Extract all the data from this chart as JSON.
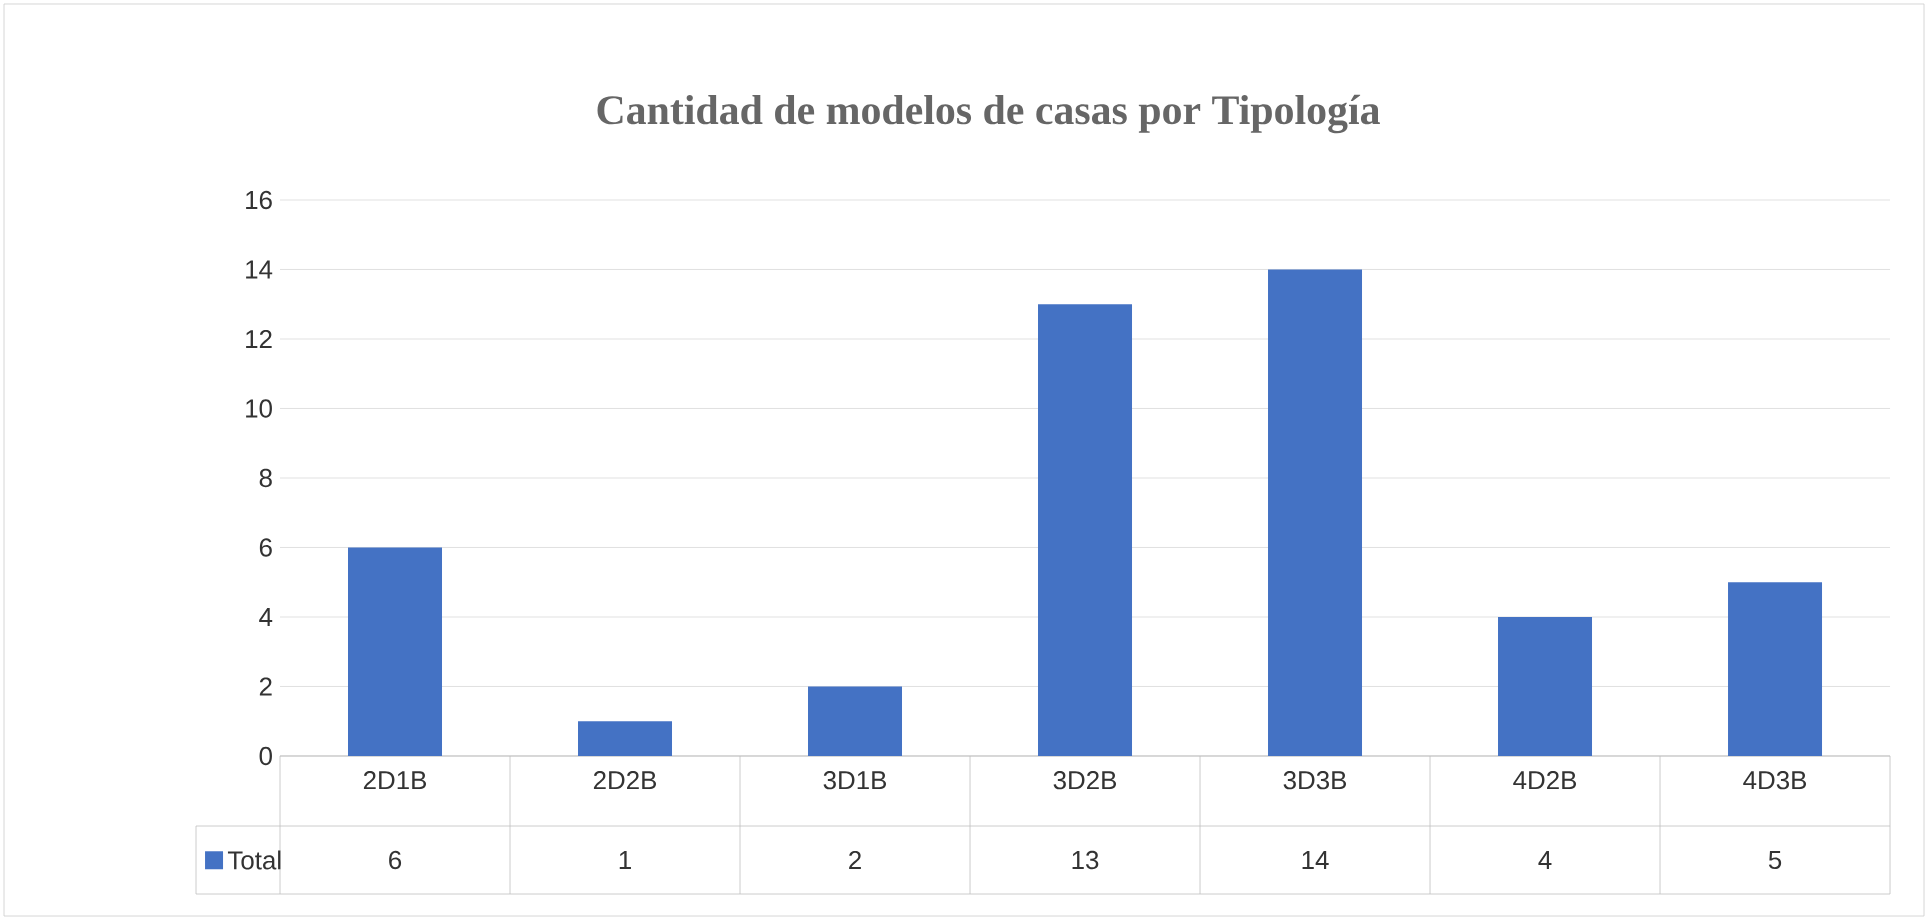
{
  "chart_data": {
    "type": "bar",
    "title": "Cantidad de modelos de casas por Tipología",
    "categories": [
      "2D1B",
      "2D2B",
      "3D1B",
      "3D2B",
      "3D3B",
      "4D2B",
      "4D3B"
    ],
    "series": [
      {
        "name": "Total",
        "color": "#4472c4",
        "values": [
          6,
          1,
          2,
          13,
          14,
          4,
          5
        ]
      }
    ],
    "ylim": [
      0,
      16
    ],
    "yticks": [
      0,
      2,
      4,
      6,
      8,
      10,
      12,
      14,
      16
    ],
    "grid": "y",
    "legend": "bottom",
    "data_labels": true
  }
}
